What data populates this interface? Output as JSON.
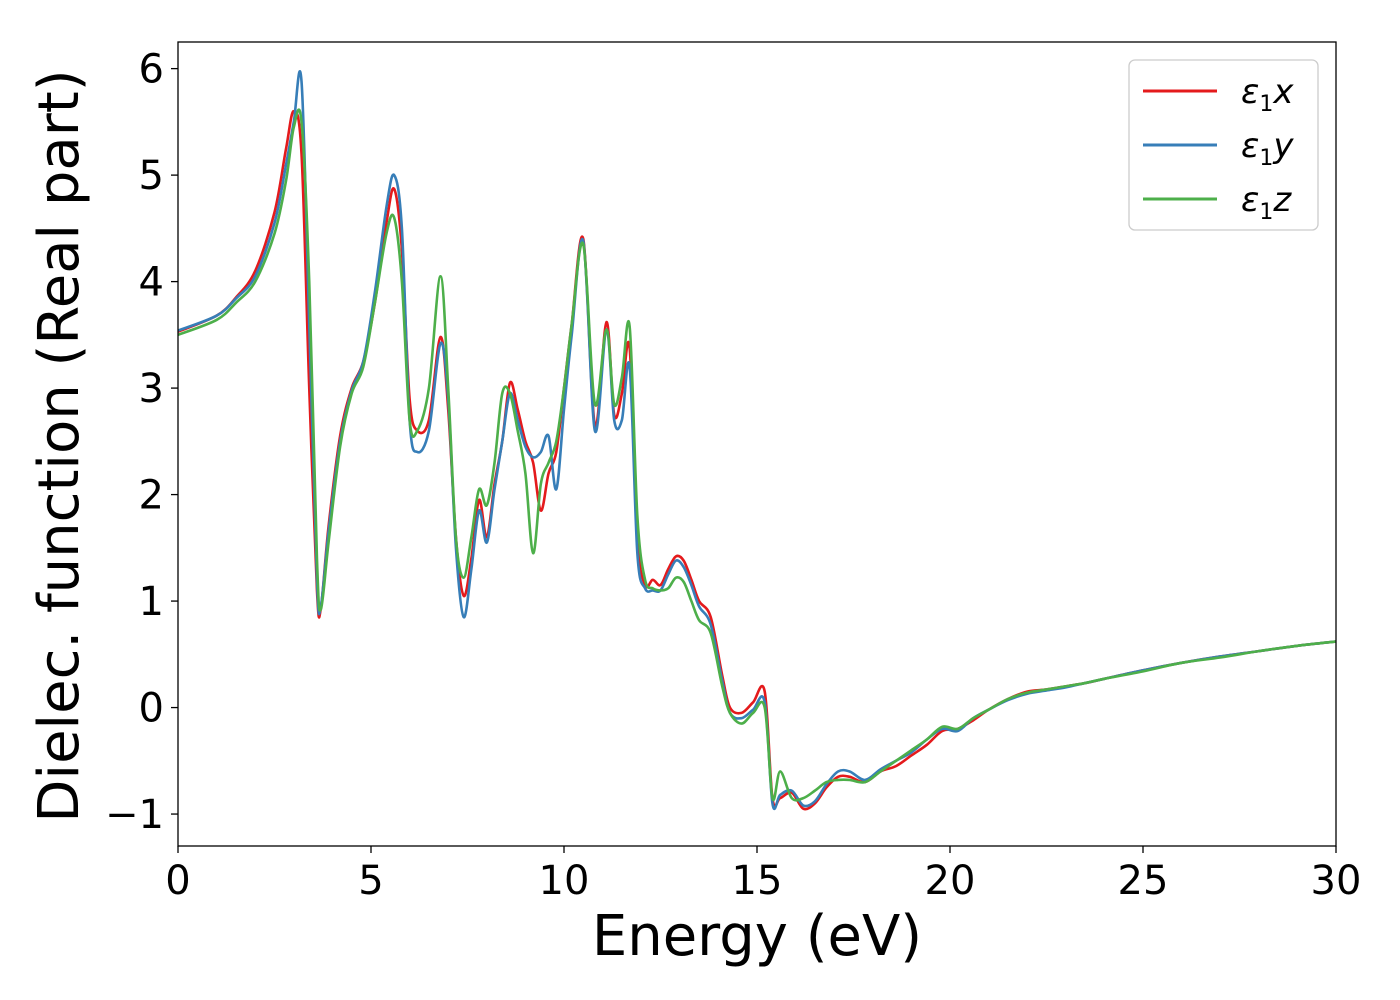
{
  "chart_data": {
    "type": "line",
    "title": "",
    "xlabel": "Energy (eV)",
    "ylabel": "Dielec. function (Real part)",
    "xlim": [
      0,
      30
    ],
    "ylim": [
      -1.3,
      6.25
    ],
    "xticks": [
      0,
      5,
      10,
      15,
      20,
      25,
      30
    ],
    "xtick_labels": [
      "0",
      "5",
      "10",
      "15",
      "20",
      "25",
      "30"
    ],
    "yticks": [
      -1,
      0,
      1,
      2,
      3,
      4,
      5,
      6
    ],
    "ytick_labels": [
      "−1",
      "0",
      "1",
      "2",
      "3",
      "4",
      "5",
      "6"
    ],
    "grid": false,
    "legend_position": "top-right",
    "series": [
      {
        "name": "ε1x",
        "legend_main": "ε",
        "legend_sub": "1",
        "legend_suffix": "x",
        "color": "#e41a1c",
        "x": [
          0,
          1,
          1.5,
          2,
          2.5,
          2.8,
          3.0,
          3.2,
          3.4,
          3.6,
          3.7,
          3.9,
          4.2,
          4.5,
          4.8,
          5.1,
          5.4,
          5.6,
          5.8,
          6.0,
          6.2,
          6.5,
          6.8,
          7.0,
          7.2,
          7.4,
          7.6,
          7.8,
          8.0,
          8.2,
          8.4,
          8.6,
          8.8,
          9.0,
          9.2,
          9.4,
          9.6,
          9.8,
          10.0,
          10.2,
          10.5,
          10.8,
          11.1,
          11.3,
          11.5,
          11.7,
          11.9,
          12.1,
          12.3,
          12.5,
          12.7,
          12.9,
          13.1,
          13.3,
          13.5,
          13.8,
          14.1,
          14.3,
          14.6,
          14.9,
          15.2,
          15.4,
          15.6,
          15.9,
          16.2,
          16.5,
          16.8,
          17.1,
          17.4,
          17.8,
          18.2,
          18.6,
          19.0,
          19.4,
          19.8,
          20.2,
          20.6,
          21.0,
          21.5,
          22.0,
          22.5,
          23.0,
          23.5,
          24.0,
          25.0,
          26.0,
          27.0,
          28.0,
          29.0,
          30.0
        ],
        "y": [
          3.53,
          3.68,
          3.85,
          4.1,
          4.65,
          5.25,
          5.6,
          5.2,
          3.0,
          1.1,
          0.93,
          1.7,
          2.55,
          3.0,
          3.25,
          3.8,
          4.55,
          4.87,
          4.3,
          2.9,
          2.6,
          2.7,
          3.48,
          2.8,
          1.6,
          1.05,
          1.4,
          1.95,
          1.6,
          2.1,
          2.5,
          3.05,
          2.8,
          2.5,
          2.3,
          1.85,
          2.2,
          2.4,
          3.0,
          3.6,
          4.4,
          2.65,
          3.62,
          2.75,
          2.95,
          3.38,
          1.6,
          1.15,
          1.2,
          1.15,
          1.3,
          1.42,
          1.38,
          1.2,
          1.0,
          0.85,
          0.3,
          0.0,
          -0.05,
          0.05,
          0.15,
          -0.85,
          -0.85,
          -0.8,
          -0.95,
          -0.9,
          -0.75,
          -0.65,
          -0.65,
          -0.7,
          -0.6,
          -0.55,
          -0.45,
          -0.35,
          -0.22,
          -0.2,
          -0.12,
          -0.02,
          0.08,
          0.15,
          0.17,
          0.2,
          0.23,
          0.27,
          0.35,
          0.42,
          0.48,
          0.53,
          0.58,
          0.62
        ]
      },
      {
        "name": "ε1y",
        "legend_main": "ε",
        "legend_sub": "1",
        "legend_suffix": "y",
        "color": "#377eb8",
        "x": [
          0,
          1,
          1.5,
          2,
          2.5,
          2.8,
          3.0,
          3.2,
          3.4,
          3.6,
          3.7,
          3.9,
          4.2,
          4.5,
          4.8,
          5.1,
          5.4,
          5.6,
          5.8,
          6.0,
          6.2,
          6.5,
          6.8,
          7.0,
          7.2,
          7.4,
          7.6,
          7.8,
          8.0,
          8.2,
          8.4,
          8.6,
          8.8,
          9.0,
          9.2,
          9.4,
          9.6,
          9.8,
          10.0,
          10.2,
          10.5,
          10.8,
          11.1,
          11.3,
          11.5,
          11.7,
          11.9,
          12.1,
          12.3,
          12.5,
          12.7,
          12.9,
          13.1,
          13.3,
          13.5,
          13.8,
          14.1,
          14.3,
          14.6,
          14.9,
          15.2,
          15.4,
          15.6,
          15.9,
          16.2,
          16.5,
          16.8,
          17.1,
          17.4,
          17.8,
          18.2,
          18.6,
          19.0,
          19.4,
          19.8,
          20.2,
          20.6,
          21.0,
          21.5,
          22.0,
          22.5,
          23.0,
          23.5,
          24.0,
          25.0,
          26.0,
          27.0,
          28.0,
          29.0,
          30.0
        ],
        "y": [
          3.54,
          3.68,
          3.84,
          4.05,
          4.55,
          5.1,
          5.5,
          5.88,
          3.6,
          1.2,
          0.95,
          1.65,
          2.5,
          2.98,
          3.25,
          3.9,
          4.7,
          5.0,
          4.5,
          2.7,
          2.4,
          2.6,
          3.42,
          2.9,
          1.5,
          0.85,
          1.3,
          1.85,
          1.55,
          2.05,
          2.5,
          2.95,
          2.7,
          2.45,
          2.35,
          2.4,
          2.55,
          2.05,
          2.8,
          3.5,
          4.38,
          2.6,
          3.55,
          2.7,
          2.7,
          3.2,
          1.45,
          1.12,
          1.1,
          1.1,
          1.25,
          1.38,
          1.32,
          1.15,
          0.95,
          0.78,
          0.25,
          -0.05,
          -0.1,
          -0.02,
          0.05,
          -0.9,
          -0.82,
          -0.78,
          -0.92,
          -0.88,
          -0.72,
          -0.6,
          -0.6,
          -0.68,
          -0.58,
          -0.5,
          -0.42,
          -0.3,
          -0.2,
          -0.22,
          -0.1,
          -0.02,
          0.07,
          0.13,
          0.16,
          0.19,
          0.23,
          0.27,
          0.35,
          0.42,
          0.48,
          0.53,
          0.58,
          0.62
        ]
      },
      {
        "name": "ε1z",
        "legend_main": "ε",
        "legend_sub": "1",
        "legend_suffix": "z",
        "color": "#4daf4a",
        "x": [
          0,
          1,
          1.5,
          2,
          2.5,
          2.8,
          3.0,
          3.2,
          3.4,
          3.6,
          3.7,
          3.9,
          4.2,
          4.5,
          4.8,
          5.1,
          5.4,
          5.6,
          5.8,
          6.0,
          6.2,
          6.5,
          6.8,
          7.0,
          7.2,
          7.4,
          7.6,
          7.8,
          8.0,
          8.2,
          8.4,
          8.6,
          8.8,
          9.0,
          9.2,
          9.4,
          9.6,
          9.8,
          10.0,
          10.2,
          10.5,
          10.8,
          11.1,
          11.3,
          11.5,
          11.7,
          11.9,
          12.1,
          12.3,
          12.5,
          12.7,
          12.9,
          13.1,
          13.3,
          13.5,
          13.8,
          14.1,
          14.3,
          14.6,
          14.9,
          15.2,
          15.4,
          15.6,
          15.9,
          16.2,
          16.5,
          16.8,
          17.1,
          17.4,
          17.8,
          18.2,
          18.6,
          19.0,
          19.4,
          19.8,
          20.2,
          20.6,
          21.0,
          21.5,
          22.0,
          22.5,
          23.0,
          23.5,
          24.0,
          25.0,
          26.0,
          27.0,
          28.0,
          29.0,
          30.0
        ],
        "y": [
          3.5,
          3.64,
          3.8,
          4.0,
          4.45,
          4.95,
          5.45,
          5.5,
          4.0,
          1.4,
          0.92,
          1.55,
          2.45,
          2.95,
          3.2,
          3.8,
          4.45,
          4.6,
          4.0,
          2.7,
          2.6,
          3.0,
          4.05,
          3.0,
          1.6,
          1.22,
          1.6,
          2.05,
          1.9,
          2.3,
          2.95,
          2.95,
          2.6,
          2.2,
          1.45,
          2.1,
          2.3,
          2.5,
          3.0,
          3.6,
          4.35,
          2.85,
          3.55,
          2.85,
          3.1,
          3.58,
          1.8,
          1.2,
          1.12,
          1.1,
          1.12,
          1.22,
          1.18,
          1.0,
          0.82,
          0.7,
          0.2,
          -0.05,
          -0.15,
          -0.05,
          0.0,
          -0.85,
          -0.6,
          -0.85,
          -0.85,
          -0.78,
          -0.7,
          -0.68,
          -0.68,
          -0.7,
          -0.6,
          -0.5,
          -0.4,
          -0.3,
          -0.18,
          -0.2,
          -0.1,
          -0.02,
          0.08,
          0.14,
          0.17,
          0.2,
          0.23,
          0.27,
          0.34,
          0.42,
          0.47,
          0.53,
          0.58,
          0.62
        ]
      }
    ]
  }
}
